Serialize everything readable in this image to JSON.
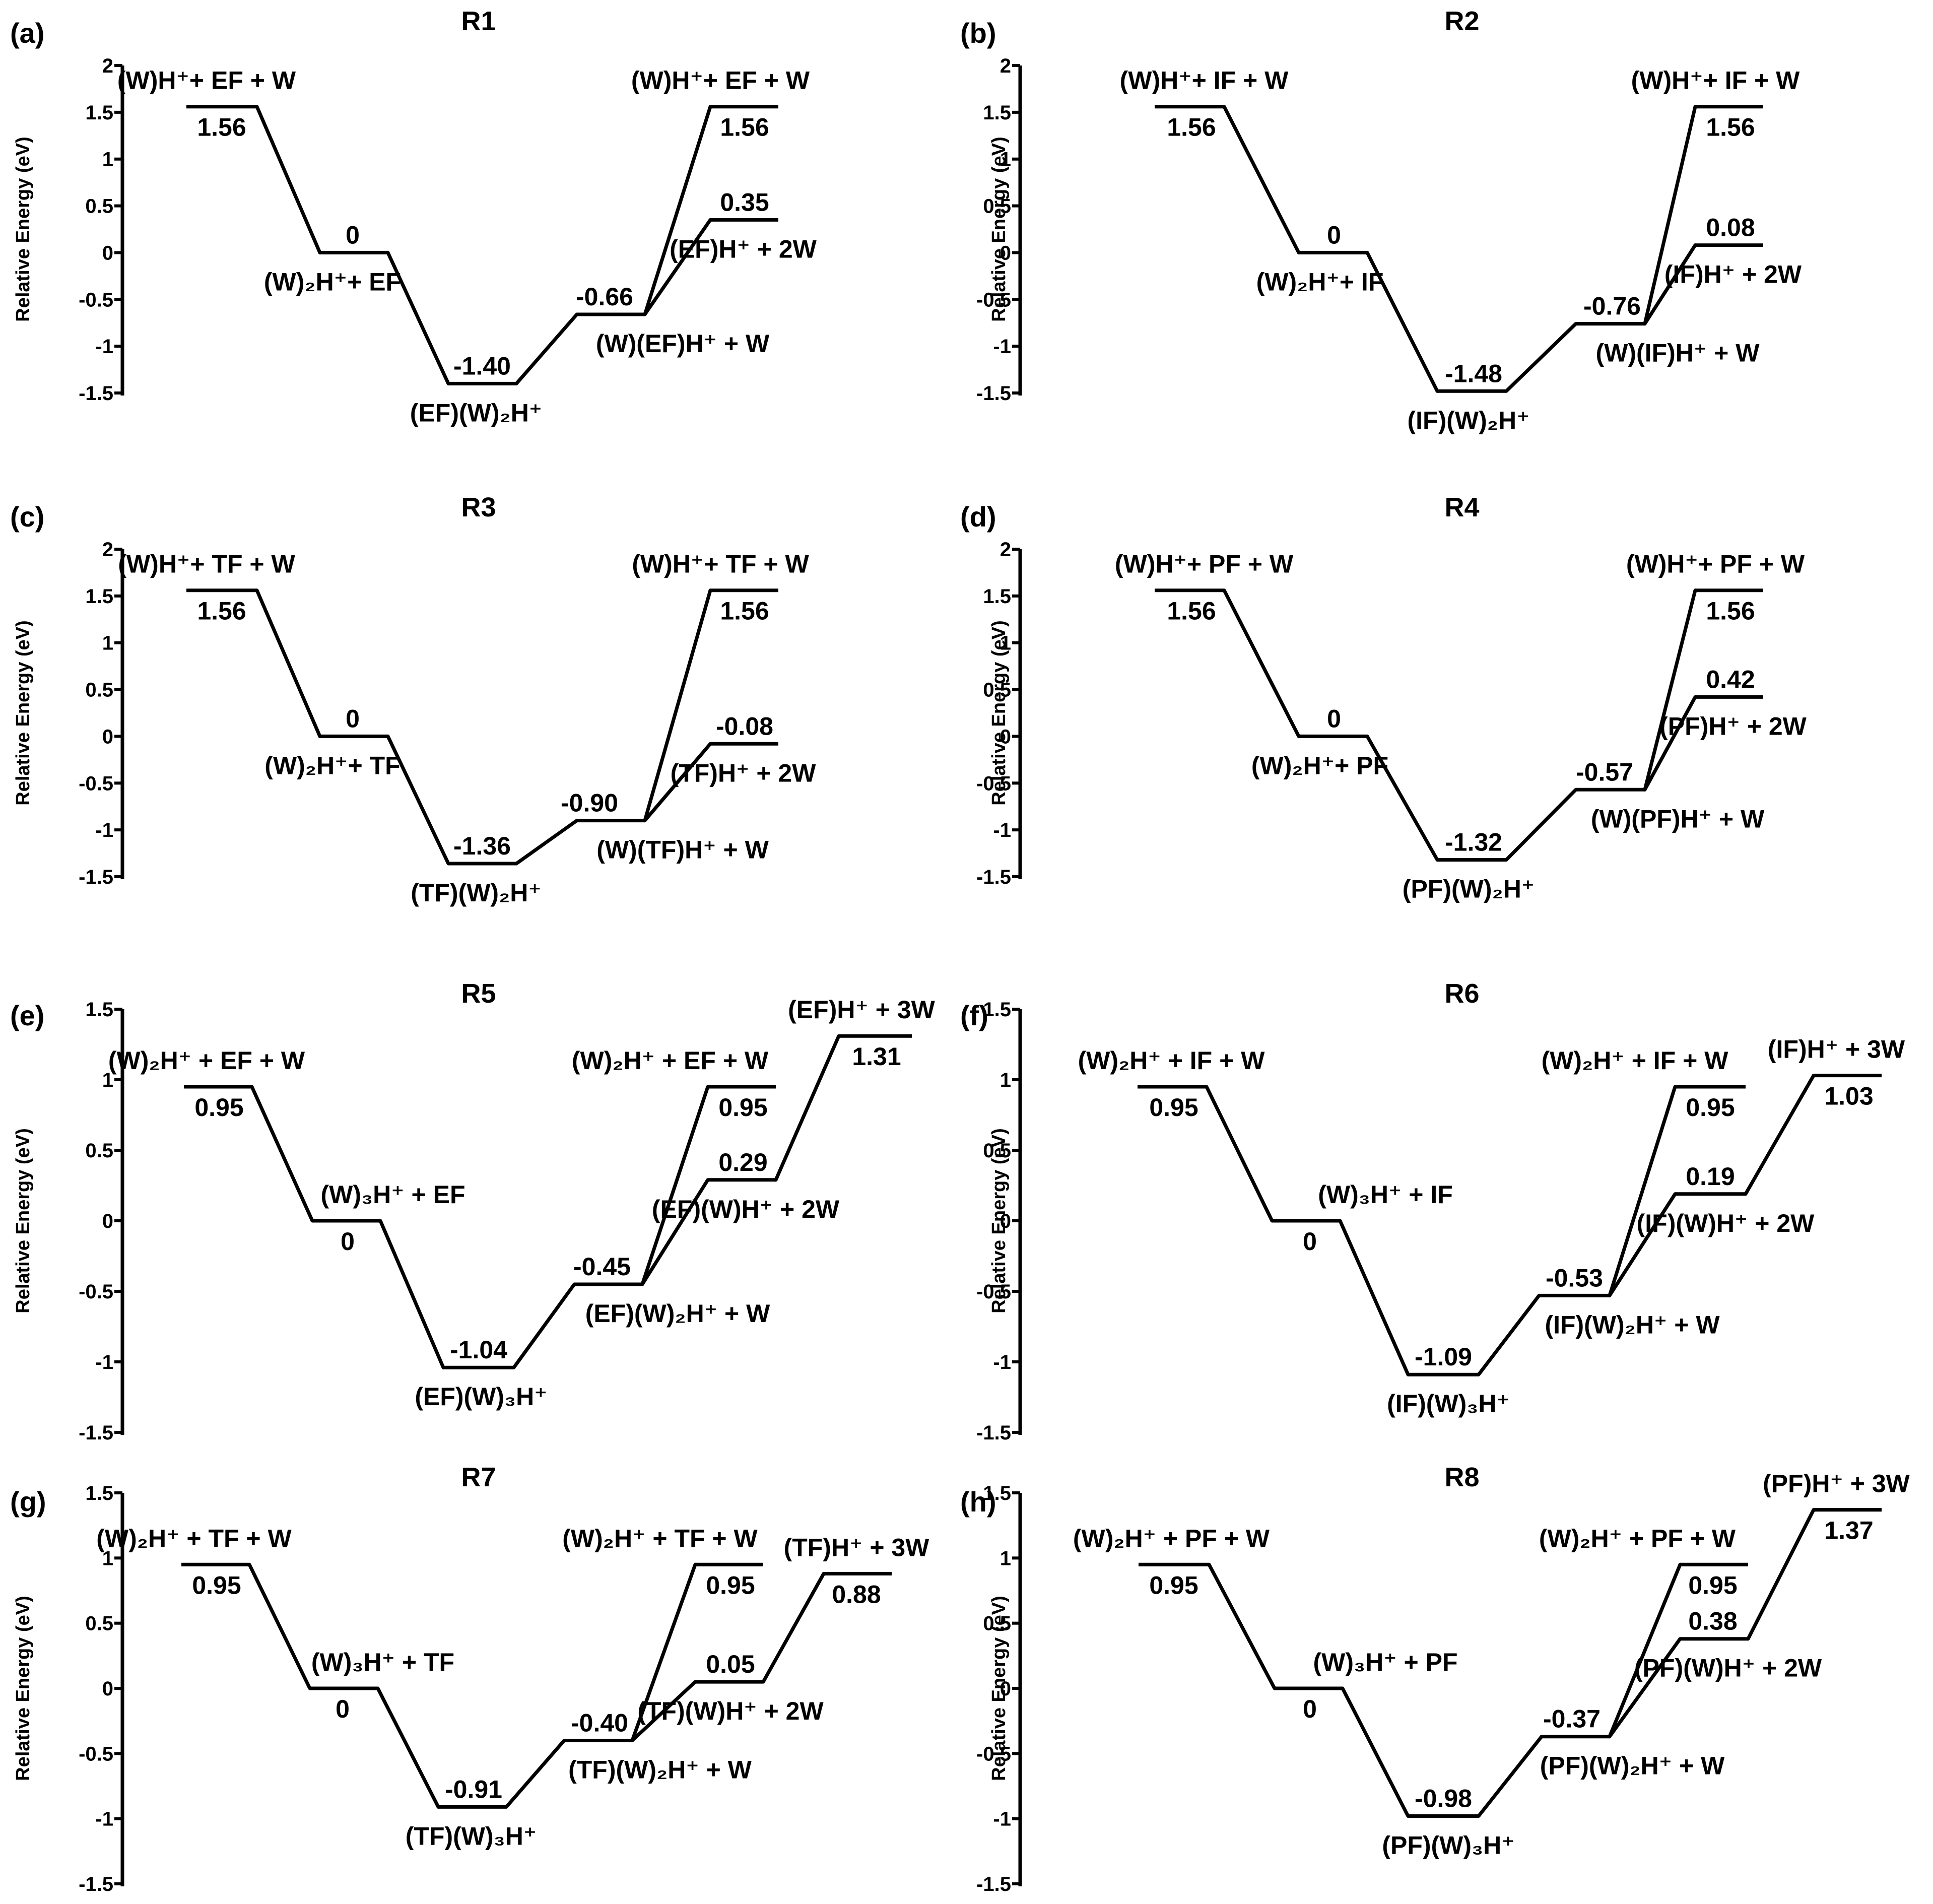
{
  "y_axis_label": "Relative Energy (eV)",
  "chart_data": [
    {
      "type": "energy-profile",
      "panel": "(a)",
      "title": "R1",
      "ylabel": "Relative Energy (eV)",
      "ylim": [
        -1.5,
        2
      ],
      "yticks": [
        "2",
        "1.5",
        "1",
        "0.5",
        "0",
        "-0.5",
        "-1",
        "-1.5"
      ],
      "levels": [
        {
          "id": "L1",
          "value": 1.56,
          "energy": "1.56",
          "label": "(W)H⁺+ EF + W"
        },
        {
          "id": "L2",
          "value": 0,
          "energy": "0",
          "label": "(W)₂H⁺+ EF"
        },
        {
          "id": "L3",
          "value": -1.4,
          "energy": "-1.40",
          "label": "(EF)(W)₂H⁺"
        },
        {
          "id": "L4",
          "value": -0.66,
          "energy": "-0.66",
          "label": "(W)(EF)H⁺ + W"
        },
        {
          "id": "L5",
          "value": 1.56,
          "energy": "1.56",
          "label": "(W)H⁺+ EF + W"
        },
        {
          "id": "L6",
          "value": 0.35,
          "energy": "0.35",
          "label": "(EF)H⁺ + 2W"
        }
      ],
      "connections": [
        [
          "L1",
          "L2"
        ],
        [
          "L2",
          "L3"
        ],
        [
          "L3",
          "L4"
        ],
        [
          "L4",
          "L5"
        ],
        [
          "L4",
          "L6"
        ]
      ]
    },
    {
      "type": "energy-profile",
      "panel": "(b)",
      "title": "R2",
      "ylabel": "Relative Energy (eV)",
      "ylim": [
        -1.5,
        2
      ],
      "yticks": [
        "2",
        "1.5",
        "1",
        "0.5",
        "0",
        "-0.5",
        "-1",
        "-1.5"
      ],
      "levels": [
        {
          "id": "L1",
          "value": 1.56,
          "energy": "1.56",
          "label": "(W)H⁺+ IF + W"
        },
        {
          "id": "L2",
          "value": 0,
          "energy": "0",
          "label": "(W)₂H⁺+ IF"
        },
        {
          "id": "L3",
          "value": -1.48,
          "energy": "-1.48",
          "label": "(IF)(W)₂H⁺"
        },
        {
          "id": "L4",
          "value": -0.76,
          "energy": "-0.76",
          "label": "(W)(IF)H⁺ + W"
        },
        {
          "id": "L5",
          "value": 1.56,
          "energy": "1.56",
          "label": "(W)H⁺+ IF + W"
        },
        {
          "id": "L6",
          "value": 0.08,
          "energy": "0.08",
          "label": "(IF)H⁺ + 2W"
        }
      ],
      "connections": [
        [
          "L1",
          "L2"
        ],
        [
          "L2",
          "L3"
        ],
        [
          "L3",
          "L4"
        ],
        [
          "L4",
          "L5"
        ],
        [
          "L4",
          "L6"
        ]
      ]
    },
    {
      "type": "energy-profile",
      "panel": "(c)",
      "title": "R3",
      "ylabel": "Relative Energy (eV)",
      "ylim": [
        -1.5,
        2
      ],
      "yticks": [
        "2",
        "1.5",
        "1",
        "0.5",
        "0",
        "-0.5",
        "-1",
        "-1.5"
      ],
      "levels": [
        {
          "id": "L1",
          "value": 1.56,
          "energy": "1.56",
          "label": "(W)H⁺+ TF + W"
        },
        {
          "id": "L2",
          "value": 0,
          "energy": "0",
          "label": "(W)₂H⁺+ TF"
        },
        {
          "id": "L3",
          "value": -1.36,
          "energy": "-1.36",
          "label": "(TF)(W)₂H⁺"
        },
        {
          "id": "L4",
          "value": -0.9,
          "energy": "-0.90",
          "label": "(W)(TF)H⁺ + W"
        },
        {
          "id": "L5",
          "value": 1.56,
          "energy": "1.56",
          "label": "(W)H⁺+ TF + W"
        },
        {
          "id": "L6",
          "value": -0.08,
          "energy": "-0.08",
          "label": "(TF)H⁺ + 2W"
        }
      ],
      "connections": [
        [
          "L1",
          "L2"
        ],
        [
          "L2",
          "L3"
        ],
        [
          "L3",
          "L4"
        ],
        [
          "L4",
          "L5"
        ],
        [
          "L4",
          "L6"
        ]
      ]
    },
    {
      "type": "energy-profile",
      "panel": "(d)",
      "title": "R4",
      "ylabel": "Relative Energy (eV)",
      "ylim": [
        -1.5,
        2
      ],
      "yticks": [
        "2",
        "1.5",
        "1",
        "0.5",
        "0",
        "-0.5",
        "-1",
        "-1.5"
      ],
      "levels": [
        {
          "id": "L1",
          "value": 1.56,
          "energy": "1.56",
          "label": "(W)H⁺+ PF + W"
        },
        {
          "id": "L2",
          "value": 0,
          "energy": "0",
          "label": "(W)₂H⁺+ PF"
        },
        {
          "id": "L3",
          "value": -1.32,
          "energy": "-1.32",
          "label": "(PF)(W)₂H⁺"
        },
        {
          "id": "L4",
          "value": -0.57,
          "energy": "-0.57",
          "label": "(W)(PF)H⁺ + W"
        },
        {
          "id": "L5",
          "value": 1.56,
          "energy": "1.56",
          "label": "(W)H⁺+ PF + W"
        },
        {
          "id": "L6",
          "value": 0.42,
          "energy": "0.42",
          "label": "(PF)H⁺ + 2W"
        }
      ],
      "connections": [
        [
          "L1",
          "L2"
        ],
        [
          "L2",
          "L3"
        ],
        [
          "L3",
          "L4"
        ],
        [
          "L4",
          "L5"
        ],
        [
          "L4",
          "L6"
        ]
      ]
    },
    {
      "type": "energy-profile",
      "panel": "(e)",
      "title": "R5",
      "ylabel": "Relative Energy (eV)",
      "ylim": [
        -1.5,
        1.5
      ],
      "yticks": [
        "1.5",
        "1",
        "0.5",
        "0",
        "-0.5",
        "-1",
        "-1.5"
      ],
      "levels": [
        {
          "id": "L1",
          "value": 0.95,
          "energy": "0.95",
          "label": "(W)₂H⁺ + EF + W"
        },
        {
          "id": "L2",
          "value": 0,
          "energy": "0",
          "label": "(W)₃H⁺ + EF"
        },
        {
          "id": "L3",
          "value": -1.04,
          "energy": "-1.04",
          "label": "(EF)(W)₃H⁺"
        },
        {
          "id": "L4",
          "value": -0.45,
          "energy": "-0.45",
          "label": "(EF)(W)₂H⁺ + W"
        },
        {
          "id": "L5",
          "value": 0.95,
          "energy": "0.95",
          "label": "(W)₂H⁺ + EF + W"
        },
        {
          "id": "L6",
          "value": 0.29,
          "energy": "0.29",
          "label": "(EF)(W)H⁺ + 2W"
        },
        {
          "id": "L7",
          "value": 1.31,
          "energy": "1.31",
          "label": "(EF)H⁺ + 3W"
        }
      ],
      "connections": [
        [
          "L1",
          "L2"
        ],
        [
          "L2",
          "L3"
        ],
        [
          "L3",
          "L4"
        ],
        [
          "L4",
          "L5"
        ],
        [
          "L4",
          "L6"
        ],
        [
          "L6",
          "L7"
        ]
      ]
    },
    {
      "type": "energy-profile",
      "panel": "(f)",
      "title": "R6",
      "ylabel": "Relative Energy (eV)",
      "ylim": [
        -1.5,
        1.5
      ],
      "yticks": [
        "1.5",
        "1",
        "0.5",
        "0",
        "-0.5",
        "-1",
        "-1.5"
      ],
      "levels": [
        {
          "id": "L1",
          "value": 0.95,
          "energy": "0.95",
          "label": "(W)₂H⁺ + IF + W"
        },
        {
          "id": "L2",
          "value": 0,
          "energy": "0",
          "label": "(W)₃H⁺ + IF"
        },
        {
          "id": "L3",
          "value": -1.09,
          "energy": "-1.09",
          "label": "(IF)(W)₃H⁺"
        },
        {
          "id": "L4",
          "value": -0.53,
          "energy": "-0.53",
          "label": "(IF)(W)₂H⁺ + W"
        },
        {
          "id": "L5",
          "value": 0.95,
          "energy": "0.95",
          "label": "(W)₂H⁺ + IF + W"
        },
        {
          "id": "L6",
          "value": 0.19,
          "energy": "0.19",
          "label": "(IF)(W)H⁺ + 2W"
        },
        {
          "id": "L7",
          "value": 1.03,
          "energy": "1.03",
          "label": "(IF)H⁺ + 3W"
        }
      ],
      "connections": [
        [
          "L1",
          "L2"
        ],
        [
          "L2",
          "L3"
        ],
        [
          "L3",
          "L4"
        ],
        [
          "L4",
          "L5"
        ],
        [
          "L4",
          "L6"
        ],
        [
          "L6",
          "L7"
        ]
      ]
    },
    {
      "type": "energy-profile",
      "panel": "(g)",
      "title": "R7",
      "ylabel": "Relative Energy (eV)",
      "ylim": [
        -1.5,
        1.5
      ],
      "yticks": [
        "1.5",
        "1",
        "0.5",
        "0",
        "-0.5",
        "-1",
        "-1.5"
      ],
      "levels": [
        {
          "id": "L1",
          "value": 0.95,
          "energy": "0.95",
          "label": "(W)₂H⁺ + TF + W"
        },
        {
          "id": "L2",
          "value": 0,
          "energy": "0",
          "label": "(W)₃H⁺ + TF"
        },
        {
          "id": "L3",
          "value": -0.91,
          "energy": "-0.91",
          "label": "(TF)(W)₃H⁺"
        },
        {
          "id": "L4",
          "value": -0.4,
          "energy": "-0.40",
          "label": "(TF)(W)₂H⁺ + W"
        },
        {
          "id": "L5",
          "value": 0.95,
          "energy": "0.95",
          "label": "(W)₂H⁺ + TF + W"
        },
        {
          "id": "L6",
          "value": 0.05,
          "energy": "0.05",
          "label": "(TF)(W)H⁺ + 2W"
        },
        {
          "id": "L7",
          "value": 0.88,
          "energy": "0.88",
          "label": "(TF)H⁺ + 3W"
        }
      ],
      "connections": [
        [
          "L1",
          "L2"
        ],
        [
          "L2",
          "L3"
        ],
        [
          "L3",
          "L4"
        ],
        [
          "L4",
          "L5"
        ],
        [
          "L4",
          "L6"
        ],
        [
          "L6",
          "L7"
        ]
      ]
    },
    {
      "type": "energy-profile",
      "panel": "(h)",
      "title": "R8",
      "ylabel": "Relative Energy (eV)",
      "ylim": [
        -1.5,
        1.5
      ],
      "yticks": [
        "1.5",
        "1",
        "0.5",
        "0",
        "-0.5",
        "-1",
        "-1.5"
      ],
      "levels": [
        {
          "id": "L1",
          "value": 0.95,
          "energy": "0.95",
          "label": "(W)₂H⁺ + PF + W"
        },
        {
          "id": "L2",
          "value": 0,
          "energy": "0",
          "label": "(W)₃H⁺ + PF"
        },
        {
          "id": "L3",
          "value": -0.98,
          "energy": "-0.98",
          "label": "(PF)(W)₃H⁺"
        },
        {
          "id": "L4",
          "value": -0.37,
          "energy": "-0.37",
          "label": "(PF)(W)₂H⁺ + W"
        },
        {
          "id": "L5",
          "value": 0.95,
          "energy": "0.95",
          "label": "(W)₂H⁺ + PF + W"
        },
        {
          "id": "L6",
          "value": 0.38,
          "energy": "0.38",
          "label": "(PF)(W)H⁺ + 2W"
        },
        {
          "id": "L7",
          "value": 1.37,
          "energy": "1.37",
          "label": "(PF)H⁺ + 3W"
        }
      ],
      "connections": [
        [
          "L1",
          "L2"
        ],
        [
          "L2",
          "L3"
        ],
        [
          "L3",
          "L4"
        ],
        [
          "L4",
          "L5"
        ],
        [
          "L4",
          "L6"
        ],
        [
          "L6",
          "L7"
        ]
      ]
    }
  ]
}
